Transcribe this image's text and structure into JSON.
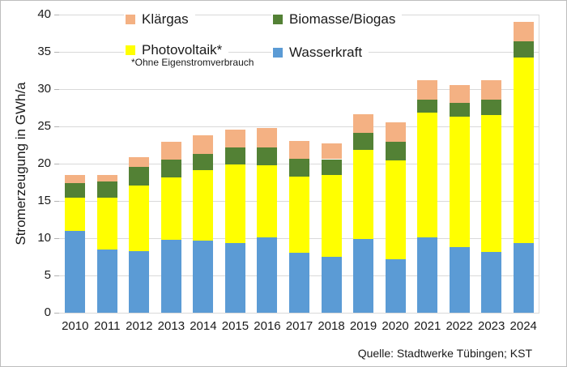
{
  "chart_data": {
    "type": "bar",
    "stacked": true,
    "title": "",
    "xlabel": "",
    "ylabel": "Stromerzeugung in GWh/a",
    "ylim": [
      0,
      40
    ],
    "ytick_step": 5,
    "grid": "horizontal",
    "legend_position": "top",
    "footnote": "*Ohne Eigenstromverbrauch",
    "categories": [
      "2010",
      "2011",
      "2012",
      "2013",
      "2014",
      "2015",
      "2016",
      "2017",
      "2018",
      "2019",
      "2020",
      "2021",
      "2022",
      "2023",
      "2024"
    ],
    "series": [
      {
        "name": "Wasserkraft",
        "color": "#5B9BD5",
        "values": [
          11.0,
          8.5,
          8.3,
          9.8,
          9.7,
          9.3,
          10.1,
          8.0,
          7.5,
          9.9,
          7.2,
          10.1,
          8.8,
          8.2,
          9.3
        ]
      },
      {
        "name": "Photovoltaik*",
        "color": "#FFFF00",
        "values": [
          4.4,
          6.9,
          8.8,
          8.3,
          9.4,
          10.6,
          9.7,
          10.3,
          11.0,
          11.9,
          13.2,
          16.7,
          17.5,
          18.3,
          24.9
        ]
      },
      {
        "name": "Biomasse/Biogas",
        "color": "#538135",
        "values": [
          2.0,
          2.2,
          2.5,
          2.4,
          2.2,
          2.3,
          2.4,
          2.4,
          2.1,
          2.3,
          2.5,
          1.8,
          1.9,
          2.1,
          2.2
        ]
      },
      {
        "name": "Klärgas",
        "color": "#F4B183",
        "values": [
          1.1,
          0.9,
          1.3,
          2.4,
          2.5,
          2.4,
          2.6,
          2.3,
          2.1,
          2.5,
          2.6,
          2.6,
          2.3,
          2.6,
          2.6
        ]
      }
    ]
  },
  "legend": {
    "items": [
      {
        "label": "Klärgas",
        "color": "#F4B183"
      },
      {
        "label": "Biomasse/Biogas",
        "color": "#538135"
      },
      {
        "label": "Photovoltaik*",
        "color": "#FFFF00"
      },
      {
        "label": "Wasserkraft",
        "color": "#5B9BD5"
      }
    ]
  },
  "source": "Quelle: Stadtwerke Tübingen; KST"
}
